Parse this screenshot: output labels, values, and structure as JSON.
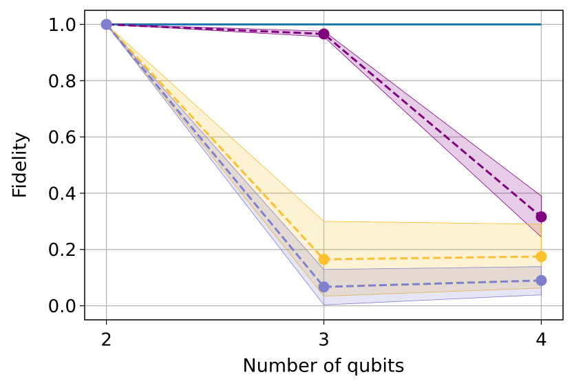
{
  "chart_data": {
    "type": "line",
    "x_label": "Number of qubits",
    "y_label": "Fidelity",
    "x": [
      2,
      3,
      4
    ],
    "xlim": [
      1.9,
      4.1
    ],
    "xticks": [
      2,
      3,
      4
    ],
    "ylim": [
      -0.05,
      1.05
    ],
    "yticks": [
      {
        "value": 0,
        "label": "0.0"
      },
      0.2,
      0.4,
      0.6,
      0.8,
      {
        "value": 1,
        "label": "1.0"
      }
    ],
    "grid": true,
    "series": [
      {
        "color": "#1f77b4",
        "dash": false,
        "markers": false,
        "values": [
          1.0,
          1.0,
          1.0
        ]
      },
      {
        "color": "#800080",
        "dash": true,
        "markers": true,
        "values": [
          1.0,
          0.966,
          0.316
        ],
        "lower": [
          1.0,
          0.956,
          0.244
        ],
        "upper": [
          1.0,
          0.976,
          0.39
        ]
      },
      {
        "color": "#fbc02d",
        "dash": true,
        "markers": true,
        "values": [
          1.0,
          0.165,
          0.175
        ],
        "lower": [
          1.0,
          0.034,
          0.063
        ],
        "upper": [
          1.0,
          0.3,
          0.29
        ]
      },
      {
        "color": "#7f7fcf",
        "dash": true,
        "markers": true,
        "values": [
          1.0,
          0.067,
          0.09
        ],
        "lower": [
          1.0,
          0.003,
          0.039
        ],
        "upper": [
          1.0,
          0.129,
          0.139
        ]
      }
    ]
  }
}
